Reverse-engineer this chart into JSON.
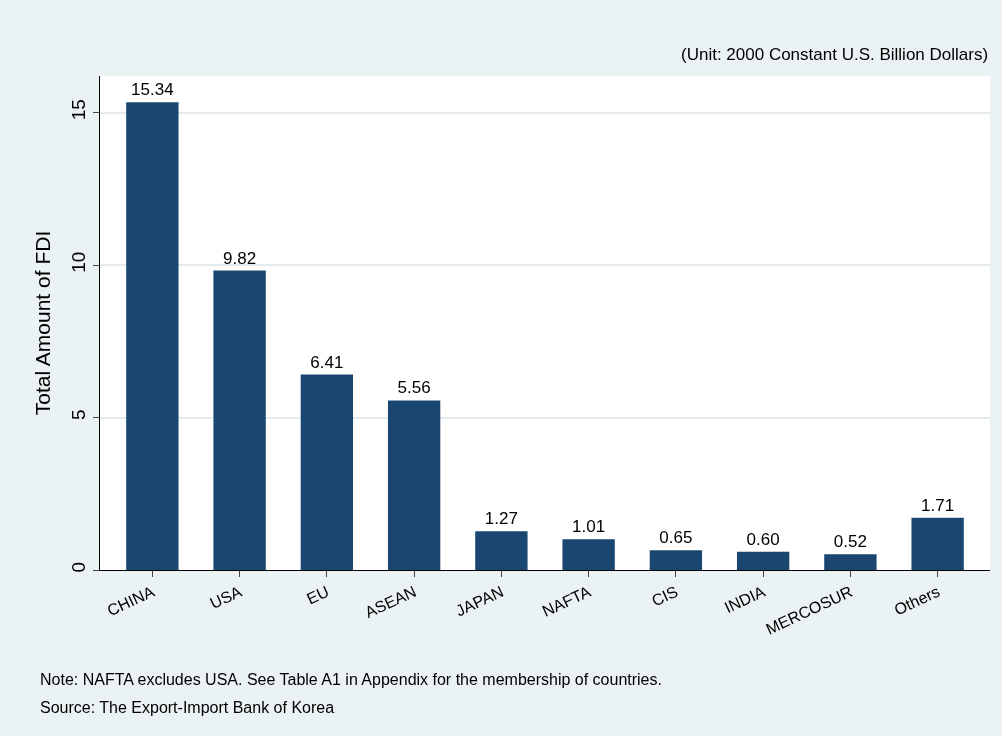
{
  "chart_data": {
    "type": "bar",
    "ylabel": "Total Amount of FDI",
    "categories": [
      "CHINA",
      "USA",
      "EU",
      "ASEAN",
      "JAPAN",
      "NAFTA",
      "CIS",
      "INDIA",
      "MERCOSUR",
      "Others"
    ],
    "values": [
      15.34,
      9.82,
      6.41,
      5.56,
      1.27,
      1.01,
      0.65,
      0.6,
      0.52,
      1.71
    ],
    "value_labels": [
      "15.34",
      "9.82",
      "6.41",
      "5.56",
      "1.27",
      "1.01",
      "0.65",
      "0.60",
      "0.52",
      "1.71"
    ],
    "color": "#1a476f",
    "ylim": [
      0,
      16.2
    ],
    "yticks": [
      0,
      5,
      10,
      15
    ],
    "grid": "y",
    "legend": false,
    "annotations": [
      "(Unit: 2000 Constant U.S. Billion Dollars)",
      "Note: NAFTA excludes USA. See Table A1 in Appendix for the membership of countries.",
      "Source: The Export-Import Bank of Korea"
    ]
  }
}
